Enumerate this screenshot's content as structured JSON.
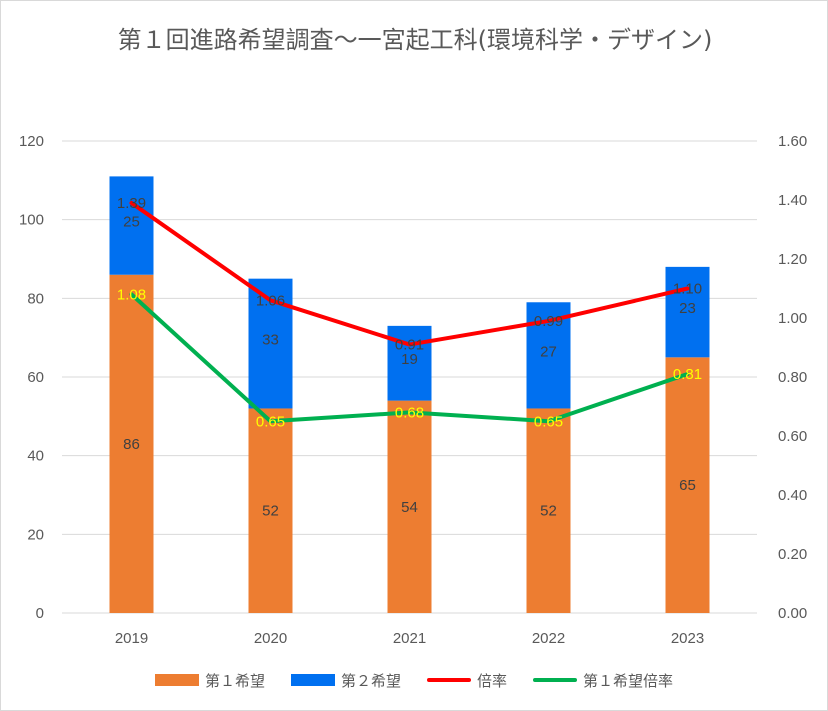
{
  "chart_data": {
    "type": "bar",
    "title": "第１回進路希望調査〜一宮起工科(環境科学・デザイン)",
    "categories": [
      "2019",
      "2020",
      "2021",
      "2022",
      "2023"
    ],
    "stacked": true,
    "series": [
      {
        "name": "第１希望",
        "kind": "bar",
        "axis": "left",
        "color": "#ED7D31",
        "values": [
          86,
          52,
          54,
          52,
          65
        ],
        "label_color": "#404040"
      },
      {
        "name": "第２希望",
        "kind": "bar",
        "axis": "left",
        "color": "#0070F0",
        "values": [
          25,
          33,
          19,
          27,
          23
        ],
        "label_color": "#404040"
      },
      {
        "name": "倍率",
        "kind": "line",
        "axis": "right",
        "color": "#FF0000",
        "values": [
          1.39,
          1.06,
          0.91,
          0.99,
          1.1
        ],
        "labels": [
          "1.39",
          "1.06",
          "0.91",
          "0.99",
          "1.10"
        ],
        "label_color": "#404040"
      },
      {
        "name": "第１希望倍率",
        "kind": "line",
        "axis": "right",
        "color": "#00B050",
        "values": [
          1.08,
          0.65,
          0.68,
          0.65,
          0.81
        ],
        "labels": [
          "1.08",
          "0.65",
          "0.68",
          "0.65",
          "0.81"
        ],
        "label_color": "#FFFF00"
      }
    ],
    "y_left": {
      "min": 0,
      "max": 120,
      "ticks": [
        "0",
        "20",
        "40",
        "60",
        "80",
        "100",
        "120"
      ]
    },
    "y_right": {
      "min": 0,
      "max": 1.6,
      "ticks": [
        "0.00",
        "0.20",
        "0.40",
        "0.60",
        "0.80",
        "1.00",
        "1.20",
        "1.40",
        "1.60"
      ]
    },
    "grid": true,
    "legend": "bottom"
  }
}
